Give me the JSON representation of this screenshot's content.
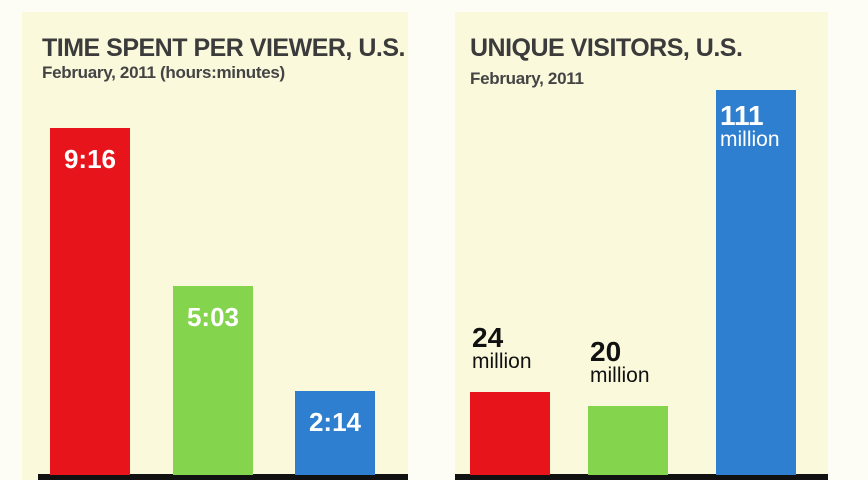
{
  "chart_data": [
    {
      "type": "bar",
      "title": "TIME SPENT PER VIEWER, U.S.",
      "subtitle": "February, 2011 (hours:minutes)",
      "categories": [
        null,
        null,
        null
      ],
      "values": [
        556,
        303,
        134
      ],
      "value_labels": [
        "9:16",
        "5:03",
        "2:14"
      ],
      "colors": [
        "#e8141c",
        "#84d44e",
        "#2f7fd0"
      ]
    },
    {
      "type": "bar",
      "title": "UNIQUE VISITORS, U.S.",
      "subtitle": "February, 2011",
      "categories": [
        null,
        null,
        null
      ],
      "values": [
        24,
        20,
        111
      ],
      "value_labels": [
        "24 million",
        "20 million",
        "111 million"
      ],
      "colors": [
        "#e8141c",
        "#84d44e",
        "#2f7fd0"
      ]
    }
  ]
}
